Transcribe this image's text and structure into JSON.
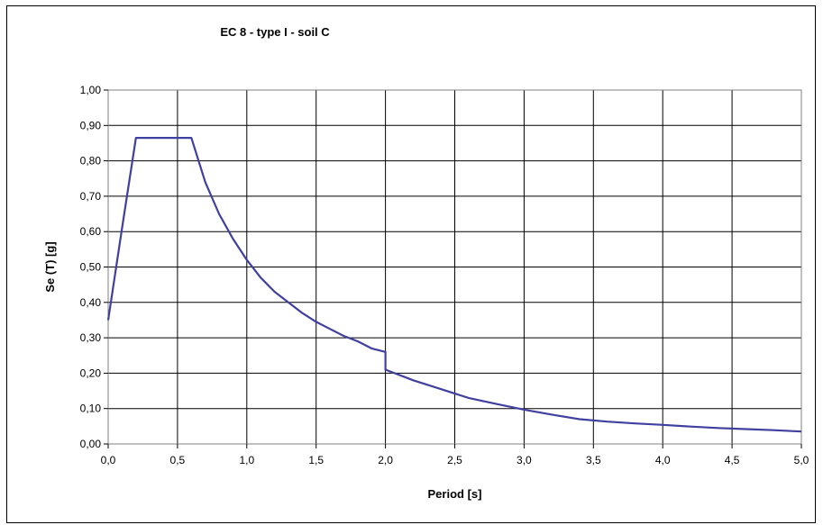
{
  "chart_data": {
    "type": "line",
    "title": "EC 8 - type  I - soil C",
    "xlabel": "Period [s]",
    "ylabel": "Se (T) [g]",
    "xlim": [
      0,
      5
    ],
    "ylim": [
      0,
      1
    ],
    "x_ticks": [
      "0,0",
      "0,5",
      "1,0",
      "1,5",
      "2,0",
      "2,5",
      "3,0",
      "3,5",
      "4,0",
      "4,5",
      "5,0"
    ],
    "y_ticks": [
      "0,00",
      "0,10",
      "0,20",
      "0,30",
      "0,40",
      "0,50",
      "0,60",
      "0,70",
      "0,80",
      "0,90",
      "1,00"
    ],
    "grid": true,
    "line_color": "#4040a0",
    "series": [
      {
        "x": [
          0.0,
          0.1,
          0.2,
          0.6,
          0.7,
          0.8,
          0.9,
          1.0,
          1.1,
          1.2,
          1.3,
          1.4,
          1.5,
          1.6,
          1.7,
          1.8,
          1.9,
          2.0,
          2.0,
          2.2,
          2.4,
          2.6,
          2.8,
          3.0,
          3.2,
          3.4,
          3.6,
          3.8,
          4.0,
          4.2,
          4.4,
          4.6,
          4.8,
          5.0
        ],
        "y": [
          0.35,
          0.61,
          0.865,
          0.865,
          0.74,
          0.65,
          0.58,
          0.52,
          0.47,
          0.43,
          0.4,
          0.37,
          0.345,
          0.325,
          0.305,
          0.29,
          0.27,
          0.26,
          0.21,
          0.18,
          0.155,
          0.13,
          0.113,
          0.097,
          0.083,
          0.07,
          0.063,
          0.058,
          0.054,
          0.049,
          0.045,
          0.042,
          0.039,
          0.035
        ]
      }
    ]
  }
}
